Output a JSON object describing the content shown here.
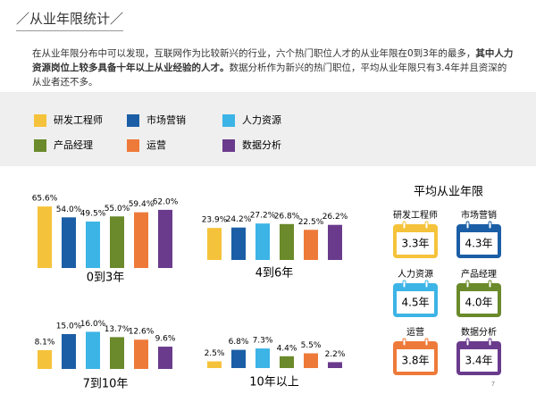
{
  "title": "／从业年限统计／",
  "intro": {
    "before": "在从业年限分布中可以发现，互联网作为比较新兴的行业，六个热门职位人才的从业年限在0到3年的最多，",
    "bold": "其中人力资源岗位上较多具备十年以上从业经验的人才。",
    "after": "数据分析作为新兴的热门职位，平均从业年限只有3.4年并且资深的从业者还不多。"
  },
  "legend": [
    {
      "name": "研发工程师",
      "color": "#f5c33b"
    },
    {
      "name": "市场营销",
      "color": "#1b5ea6"
    },
    {
      "name": "人力资源",
      "color": "#3cb4e6"
    },
    {
      "name": "产品经理",
      "color": "#6b8a2b"
    },
    {
      "name": "运营",
      "color": "#ee7a3a"
    },
    {
      "name": "数据分析",
      "color": "#6a3b8c"
    }
  ],
  "chart_data": [
    {
      "type": "bar",
      "title": "0到3年",
      "values": [
        65.6,
        54.0,
        49.5,
        55.0,
        59.4,
        62.0
      ],
      "value_labels": [
        "65.6%",
        "54.0%",
        "49.5%",
        "55.0%",
        "59.4%",
        "62.0%"
      ]
    },
    {
      "type": "bar",
      "title": "4到6年",
      "values": [
        23.9,
        24.2,
        27.2,
        26.8,
        22.5,
        26.2
      ],
      "value_labels": [
        "23.9%",
        "24.2%",
        "27.2%",
        "26.8%",
        "22.5%",
        "26.2%"
      ]
    },
    {
      "type": "bar",
      "title": "7到10年",
      "values": [
        8.1,
        15.0,
        16.0,
        13.7,
        12.6,
        9.6
      ],
      "value_labels": [
        "8.1%",
        "15.0%",
        "16.0%",
        "13.7%",
        "12.6%",
        "9.6%"
      ]
    },
    {
      "type": "bar",
      "title": "10年以上",
      "values": [
        2.5,
        6.8,
        7.3,
        4.4,
        5.5,
        2.2
      ],
      "value_labels": [
        "2.5%",
        "6.8%",
        "7.3%",
        "4.4%",
        "5.5%",
        "2.2%"
      ]
    }
  ],
  "average": {
    "title": "平均从业年限",
    "items": [
      "3.3年",
      "4.3年",
      "4.5年",
      "4.0年",
      "3.8年",
      "3.4年"
    ]
  },
  "page_number": "7"
}
